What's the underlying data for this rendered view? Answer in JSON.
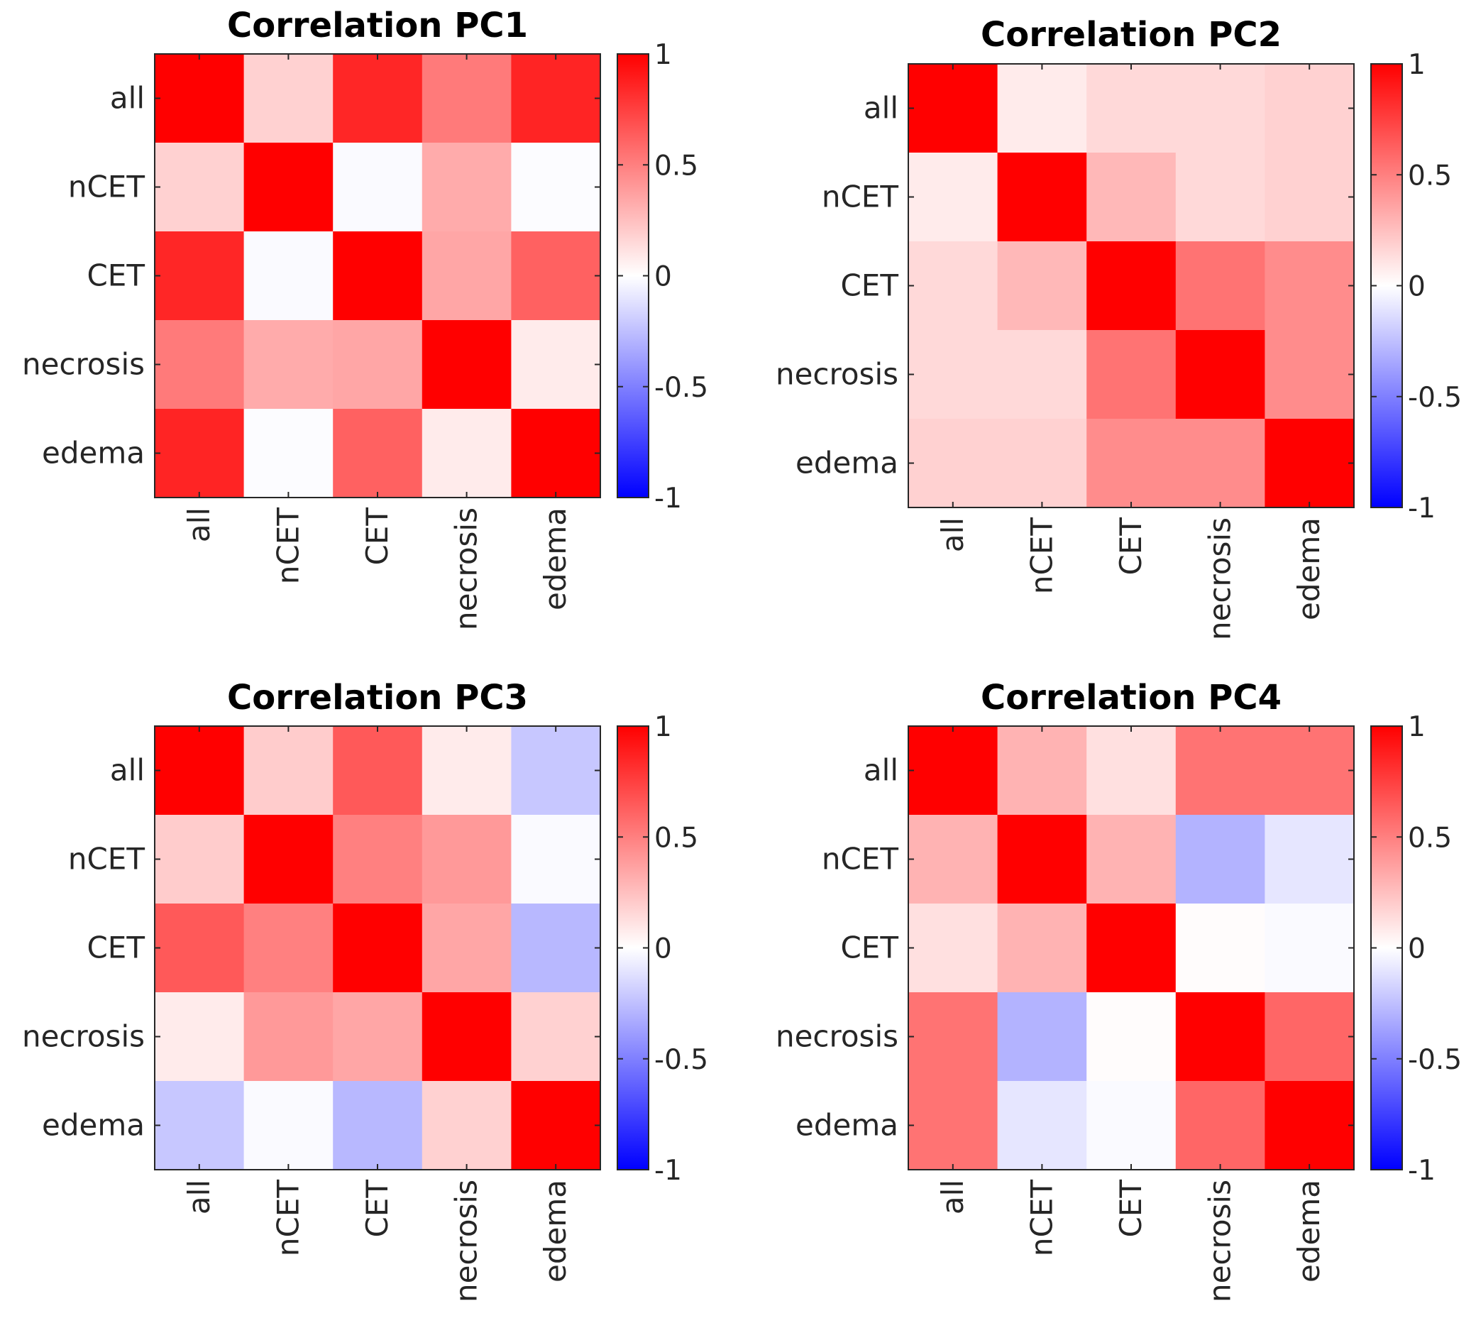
{
  "chart_data": [
    {
      "type": "heatmap",
      "title": "Correlation PC1",
      "rows": [
        "all",
        "nCET",
        "CET",
        "necrosis",
        "edema"
      ],
      "columns": [
        "all",
        "nCET",
        "CET",
        "necrosis",
        "edema"
      ],
      "values": [
        [
          1.0,
          0.18,
          0.85,
          0.52,
          0.86
        ],
        [
          0.18,
          1.0,
          -0.02,
          0.33,
          -0.01
        ],
        [
          0.85,
          -0.02,
          1.0,
          0.35,
          0.62
        ],
        [
          0.52,
          0.33,
          0.35,
          1.0,
          0.08
        ],
        [
          0.86,
          -0.01,
          0.62,
          0.08,
          1.0
        ]
      ],
      "colorbar": {
        "range": [
          -1,
          1
        ],
        "ticks": [
          "1",
          "0.5",
          "0",
          "-0.5",
          "-1"
        ],
        "colors": [
          "#0000ff",
          "#ffffff",
          "#ff0000"
        ]
      }
    },
    {
      "type": "heatmap",
      "title": "Correlation PC2",
      "rows": [
        "all",
        "nCET",
        "CET",
        "necrosis",
        "edema"
      ],
      "columns": [
        "all",
        "nCET",
        "CET",
        "necrosis",
        "edema"
      ],
      "values": [
        [
          1.0,
          0.08,
          0.15,
          0.15,
          0.18
        ],
        [
          0.08,
          1.0,
          0.28,
          0.15,
          0.18
        ],
        [
          0.15,
          0.28,
          1.0,
          0.55,
          0.45
        ],
        [
          0.15,
          0.15,
          0.55,
          1.0,
          0.45
        ],
        [
          0.18,
          0.18,
          0.45,
          0.45,
          1.0
        ]
      ],
      "colorbar": {
        "range": [
          -1,
          1
        ],
        "ticks": [
          "1",
          "0.5",
          "0",
          "-0.5",
          "-1"
        ],
        "colors": [
          "#0000ff",
          "#ffffff",
          "#ff0000"
        ]
      }
    },
    {
      "type": "heatmap",
      "title": "Correlation PC3",
      "rows": [
        "all",
        "nCET",
        "CET",
        "necrosis",
        "edema"
      ],
      "columns": [
        "all",
        "nCET",
        "CET",
        "necrosis",
        "edema"
      ],
      "values": [
        [
          1.0,
          0.2,
          0.65,
          0.08,
          -0.22
        ],
        [
          0.2,
          1.0,
          0.5,
          0.4,
          -0.02
        ],
        [
          0.65,
          0.5,
          1.0,
          0.35,
          -0.28
        ],
        [
          0.08,
          0.4,
          0.35,
          1.0,
          0.18
        ],
        [
          -0.22,
          -0.02,
          -0.28,
          0.18,
          1.0
        ]
      ],
      "colorbar": {
        "range": [
          -1,
          1
        ],
        "ticks": [
          "1",
          "0.5",
          "0",
          "-0.5",
          "-1"
        ],
        "colors": [
          "#0000ff",
          "#ffffff",
          "#ff0000"
        ]
      }
    },
    {
      "type": "heatmap",
      "title": "Correlation PC4",
      "rows": [
        "all",
        "nCET",
        "CET",
        "necrosis",
        "edema"
      ],
      "columns": [
        "all",
        "nCET",
        "CET",
        "necrosis",
        "edema"
      ],
      "values": [
        [
          1.0,
          0.3,
          0.12,
          0.55,
          0.55
        ],
        [
          0.3,
          1.0,
          0.3,
          -0.3,
          -0.1
        ],
        [
          0.12,
          0.3,
          1.0,
          0.01,
          -0.02
        ],
        [
          0.55,
          -0.3,
          0.01,
          1.0,
          0.6
        ],
        [
          0.55,
          -0.1,
          -0.02,
          0.6,
          1.0
        ]
      ],
      "colorbar": {
        "range": [
          -1,
          1
        ],
        "ticks": [
          "1",
          "0.5",
          "0",
          "-0.5",
          "-1"
        ],
        "colors": [
          "#0000ff",
          "#ffffff",
          "#ff0000"
        ]
      }
    }
  ]
}
